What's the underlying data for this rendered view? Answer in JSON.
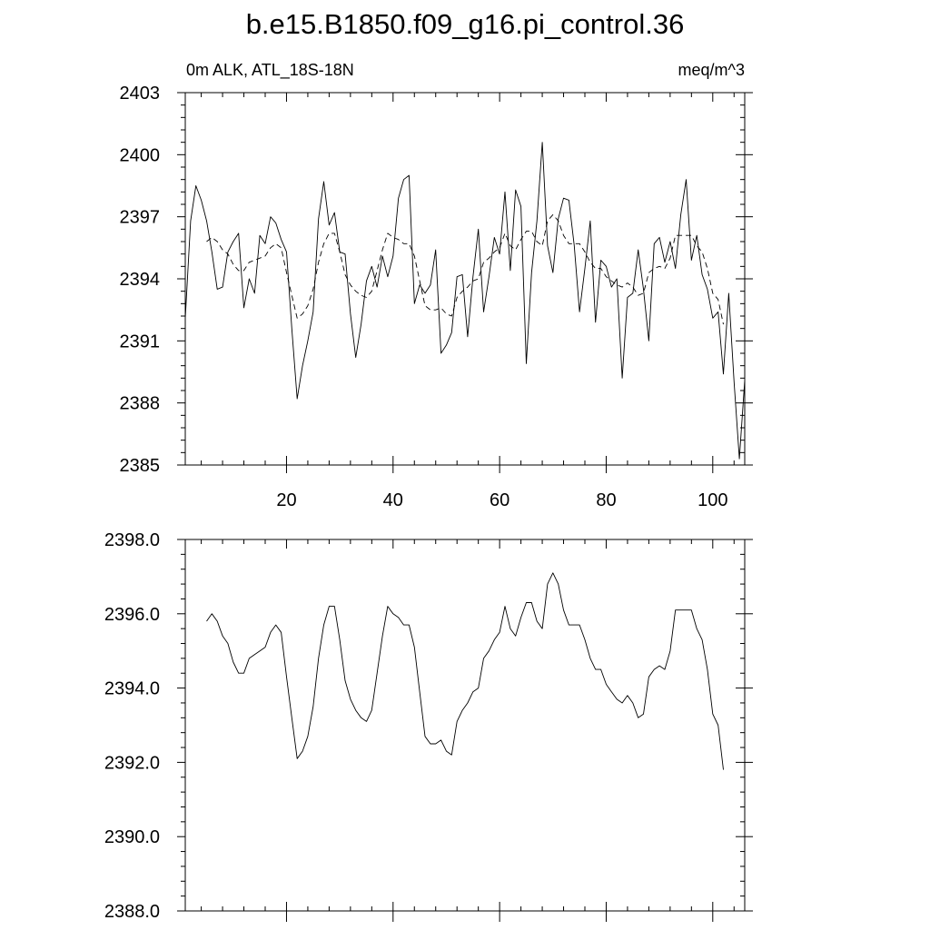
{
  "figure_title": "b.e15.B1850.f09_g16.pi_control.36",
  "chart_data": [
    {
      "type": "line",
      "title": "",
      "left_label": "0m ALK, ATL_18S-18N",
      "right_label": "meq/m^3",
      "xlim": [
        1,
        106
      ],
      "ylim": [
        2385,
        2403
      ],
      "xticks": [
        20,
        40,
        60,
        80,
        100
      ],
      "xtick_labels": [
        "20",
        "40",
        "60",
        "80",
        "100"
      ],
      "yticks": [
        2385,
        2388,
        2391,
        2394,
        2397,
        2400,
        2403
      ],
      "ytick_labels": [
        "2385",
        "2388",
        "2391",
        "2394",
        "2397",
        "2400",
        "2403"
      ],
      "grid": false,
      "series": [
        {
          "style": "solid",
          "x": [
            1,
            2,
            3,
            4,
            5,
            6,
            7,
            8,
            9,
            10,
            11,
            12,
            13,
            14,
            15,
            16,
            17,
            18,
            19,
            20,
            21,
            22,
            23,
            24,
            25,
            26,
            27,
            28,
            29,
            30,
            31,
            32,
            33,
            34,
            35,
            36,
            37,
            38,
            39,
            40,
            41,
            42,
            43,
            44,
            45,
            46,
            47,
            48,
            49,
            50,
            51,
            52,
            53,
            54,
            55,
            56,
            57,
            58,
            59,
            60,
            61,
            62,
            63,
            64,
            65,
            66,
            67,
            68,
            69,
            70,
            71,
            72,
            73,
            74,
            75,
            76,
            77,
            78,
            79,
            80,
            81,
            82,
            83,
            84,
            85,
            86,
            87,
            88,
            89,
            90,
            91,
            92,
            93,
            94,
            95,
            96,
            97,
            98,
            99,
            100,
            101,
            102,
            103,
            104,
            105,
            106
          ],
          "values": [
            2392.1,
            2396.8,
            2398.5,
            2397.8,
            2396.8,
            2395.3,
            2393.5,
            2393.6,
            2395.3,
            2395.8,
            2396.2,
            2392.6,
            2394.0,
            2393.3,
            2396.1,
            2395.7,
            2397.0,
            2396.7,
            2395.9,
            2395.3,
            2391.6,
            2388.2,
            2389.8,
            2391.0,
            2392.4,
            2396.9,
            2398.7,
            2396.6,
            2397.2,
            2395.3,
            2395.2,
            2392.3,
            2390.2,
            2391.8,
            2393.9,
            2394.6,
            2393.6,
            2395.1,
            2394.1,
            2395.1,
            2397.9,
            2398.8,
            2399.0,
            2392.8,
            2393.7,
            2393.3,
            2393.7,
            2395.4,
            2390.4,
            2390.8,
            2391.4,
            2394.1,
            2394.2,
            2391.2,
            2394.1,
            2396.4,
            2392.4,
            2394.1,
            2396.0,
            2395.2,
            2398.2,
            2394.4,
            2398.3,
            2397.5,
            2389.9,
            2394.3,
            2396.8,
            2400.6,
            2395.6,
            2394.3,
            2396.9,
            2397.9,
            2397.8,
            2395.6,
            2392.4,
            2394.5,
            2396.8,
            2391.9,
            2394.9,
            2394.6,
            2393.6,
            2394.0,
            2389.2,
            2393.1,
            2393.3,
            2395.4,
            2393.5,
            2391.0,
            2395.7,
            2396.0,
            2394.8,
            2395.8,
            2394.5,
            2397.1,
            2398.8,
            2394.9,
            2396.1,
            2394.2,
            2393.5,
            2392.1,
            2392.4,
            2389.4,
            2393.3,
            2389.0,
            2385.3,
            2389.1
          ]
        },
        {
          "style": "dashed",
          "x": [
            5,
            6,
            7,
            8,
            9,
            10,
            11,
            12,
            13,
            14,
            15,
            16,
            17,
            18,
            19,
            20,
            21,
            22,
            23,
            24,
            25,
            26,
            27,
            28,
            29,
            30,
            31,
            32,
            33,
            34,
            35,
            36,
            37,
            38,
            39,
            40,
            41,
            42,
            43,
            44,
            45,
            46,
            47,
            48,
            49,
            50,
            51,
            52,
            53,
            54,
            55,
            56,
            57,
            58,
            59,
            60,
            61,
            62,
            63,
            64,
            65,
            66,
            67,
            68,
            69,
            70,
            71,
            72,
            73,
            74,
            75,
            76,
            77,
            78,
            79,
            80,
            81,
            82,
            83,
            84,
            85,
            86,
            87,
            88,
            89,
            90,
            91,
            92,
            93,
            94,
            95,
            96,
            97,
            98,
            99,
            100,
            101,
            102
          ],
          "values": [
            2395.8,
            2396.0,
            2395.8,
            2395.4,
            2395.2,
            2394.7,
            2394.4,
            2394.4,
            2394.8,
            2394.9,
            2395.0,
            2395.1,
            2395.5,
            2395.7,
            2395.5,
            2394.3,
            2393.2,
            2392.1,
            2392.3,
            2392.7,
            2393.5,
            2394.8,
            2395.7,
            2396.2,
            2396.2,
            2395.3,
            2394.2,
            2393.7,
            2393.4,
            2393.2,
            2393.1,
            2393.4,
            2394.4,
            2395.4,
            2396.2,
            2396.0,
            2395.9,
            2395.7,
            2395.7,
            2395.1,
            2393.9,
            2392.7,
            2392.5,
            2392.5,
            2392.6,
            2392.3,
            2392.2,
            2393.1,
            2393.4,
            2393.6,
            2393.9,
            2394.0,
            2394.8,
            2395.0,
            2395.3,
            2395.5,
            2396.2,
            2395.6,
            2395.4,
            2395.9,
            2396.3,
            2396.3,
            2395.8,
            2395.6,
            2396.8,
            2397.1,
            2396.8,
            2396.1,
            2395.7,
            2395.7,
            2395.7,
            2395.3,
            2394.8,
            2394.5,
            2394.5,
            2394.1,
            2393.9,
            2393.7,
            2393.6,
            2393.8,
            2393.6,
            2393.2,
            2393.3,
            2394.3,
            2394.5,
            2394.6,
            2394.5,
            2395.0,
            2396.1,
            2396.1,
            2396.1,
            2396.1,
            2395.6,
            2395.3,
            2394.5,
            2393.3,
            2393.0,
            2391.8
          ]
        }
      ]
    },
    {
      "type": "line",
      "title": "",
      "xlim": [
        1,
        106
      ],
      "ylim": [
        2388.0,
        2398.0
      ],
      "xticks": [
        20,
        40,
        60,
        80,
        100
      ],
      "xtick_labels": [],
      "yticks": [
        2388.0,
        2390.0,
        2392.0,
        2394.0,
        2396.0,
        2398.0
      ],
      "ytick_labels": [
        "2388.0",
        "2390.0",
        "2392.0",
        "2394.0",
        "2396.0",
        "2398.0"
      ],
      "grid": false,
      "series": [
        {
          "style": "solid",
          "x": [
            5,
            6,
            7,
            8,
            9,
            10,
            11,
            12,
            13,
            14,
            15,
            16,
            17,
            18,
            19,
            20,
            21,
            22,
            23,
            24,
            25,
            26,
            27,
            28,
            29,
            30,
            31,
            32,
            33,
            34,
            35,
            36,
            37,
            38,
            39,
            40,
            41,
            42,
            43,
            44,
            45,
            46,
            47,
            48,
            49,
            50,
            51,
            52,
            53,
            54,
            55,
            56,
            57,
            58,
            59,
            60,
            61,
            62,
            63,
            64,
            65,
            66,
            67,
            68,
            69,
            70,
            71,
            72,
            73,
            74,
            75,
            76,
            77,
            78,
            79,
            80,
            81,
            82,
            83,
            84,
            85,
            86,
            87,
            88,
            89,
            90,
            91,
            92,
            93,
            94,
            95,
            96,
            97,
            98,
            99,
            100,
            101,
            102
          ],
          "values": [
            2395.8,
            2396.0,
            2395.8,
            2395.4,
            2395.2,
            2394.7,
            2394.4,
            2394.4,
            2394.8,
            2394.9,
            2395.0,
            2395.1,
            2395.5,
            2395.7,
            2395.5,
            2394.3,
            2393.2,
            2392.1,
            2392.3,
            2392.7,
            2393.5,
            2394.8,
            2395.7,
            2396.2,
            2396.2,
            2395.3,
            2394.2,
            2393.7,
            2393.4,
            2393.2,
            2393.1,
            2393.4,
            2394.4,
            2395.4,
            2396.2,
            2396.0,
            2395.9,
            2395.7,
            2395.7,
            2395.1,
            2393.9,
            2392.7,
            2392.5,
            2392.5,
            2392.6,
            2392.3,
            2392.2,
            2393.1,
            2393.4,
            2393.6,
            2393.9,
            2394.0,
            2394.8,
            2395.0,
            2395.3,
            2395.5,
            2396.2,
            2395.6,
            2395.4,
            2395.9,
            2396.3,
            2396.3,
            2395.8,
            2395.6,
            2396.8,
            2397.1,
            2396.8,
            2396.1,
            2395.7,
            2395.7,
            2395.7,
            2395.3,
            2394.8,
            2394.5,
            2394.5,
            2394.1,
            2393.9,
            2393.7,
            2393.6,
            2393.8,
            2393.6,
            2393.2,
            2393.3,
            2394.3,
            2394.5,
            2394.6,
            2394.5,
            2395.0,
            2396.1,
            2396.1,
            2396.1,
            2396.1,
            2395.6,
            2395.3,
            2394.5,
            2393.3,
            2393.0,
            2391.8
          ]
        }
      ]
    }
  ]
}
